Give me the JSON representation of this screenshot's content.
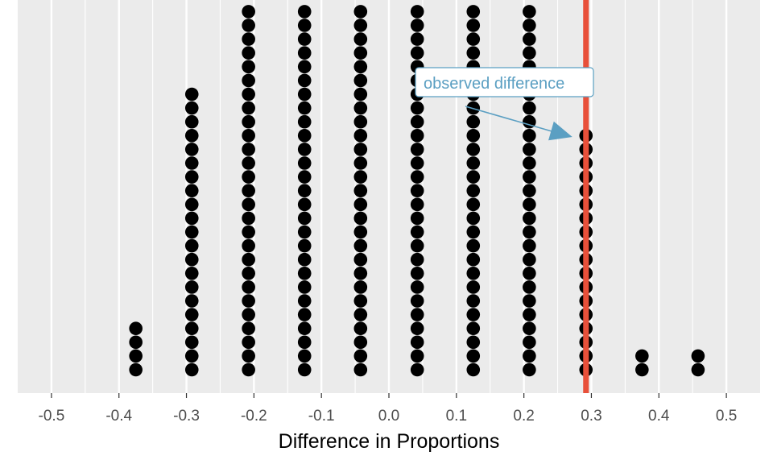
{
  "chart_data": {
    "type": "dotplot",
    "xlabel": "Difference in Proportions",
    "xlim": [
      -0.55,
      0.55
    ],
    "x_ticks": [
      -0.5,
      -0.4,
      -0.3,
      -0.2,
      -0.1,
      0.0,
      0.1,
      0.2,
      0.3,
      0.4,
      0.5
    ],
    "x_tick_labels": [
      "-0.5",
      "-0.4",
      "-0.3",
      "-0.2",
      "-0.1",
      "0.0",
      "0.1",
      "0.2",
      "0.3",
      "0.4",
      "0.5"
    ],
    "grid": true,
    "y_axis_shown": false,
    "stacks": [
      {
        "x": -0.375,
        "count": 4
      },
      {
        "x": -0.292,
        "count": 21
      },
      {
        "x": -0.208,
        "count": 27
      },
      {
        "x": -0.125,
        "count": 27
      },
      {
        "x": -0.042,
        "count": 27
      },
      {
        "x": 0.042,
        "count": 27
      },
      {
        "x": 0.125,
        "count": 27
      },
      {
        "x": 0.208,
        "count": 27
      },
      {
        "x": 0.292,
        "count": 18
      },
      {
        "x": 0.375,
        "count": 2
      },
      {
        "x": 0.458,
        "count": 2
      }
    ],
    "observed_line": {
      "x": 0.292,
      "color": "#e8503a"
    },
    "annotation": {
      "text": "observed difference",
      "color": "#5b9fc2",
      "points_to_x": 0.292
    },
    "colors": {
      "panel": "#ebebeb",
      "gridline": "#ffffff",
      "dot": "#000000"
    }
  }
}
